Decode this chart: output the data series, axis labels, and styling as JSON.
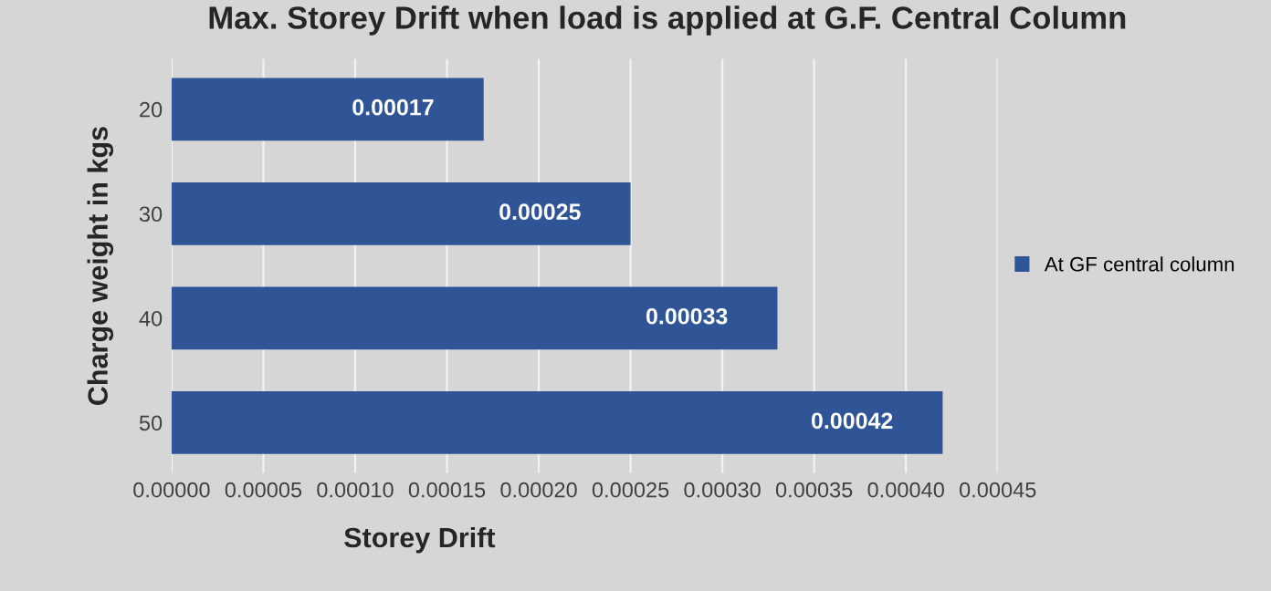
{
  "chart_data": {
    "type": "bar",
    "orientation": "horizontal",
    "title": "Max. Storey Drift when load is applied at G.F. Central Column",
    "xlabel": "Storey Drift",
    "ylabel": "Charge weight in kgs",
    "categories": [
      "20",
      "30",
      "40",
      "50"
    ],
    "series": [
      {
        "name": "At GF central column",
        "color": "#2f5597",
        "values": [
          0.00017,
          0.00025,
          0.00033,
          0.00042
        ]
      }
    ],
    "data_labels": true,
    "xlim": [
      0,
      0.00045
    ],
    "xticks": [
      {
        "value": 0,
        "label": "0.00000"
      },
      {
        "value": 5e-05,
        "label": "0.00005"
      },
      {
        "value": 0.0001,
        "label": "0.00010"
      },
      {
        "value": 0.00015,
        "label": "0.00015"
      },
      {
        "value": 0.0002,
        "label": "0.00020"
      },
      {
        "value": 0.00025,
        "label": "0.00025"
      },
      {
        "value": 0.0003,
        "label": "0.00030"
      },
      {
        "value": 0.00035,
        "label": "0.00035"
      },
      {
        "value": 0.0004,
        "label": "0.00040"
      },
      {
        "value": 0.00045,
        "label": "0.00045"
      }
    ],
    "grid": "x",
    "legend": "right"
  }
}
